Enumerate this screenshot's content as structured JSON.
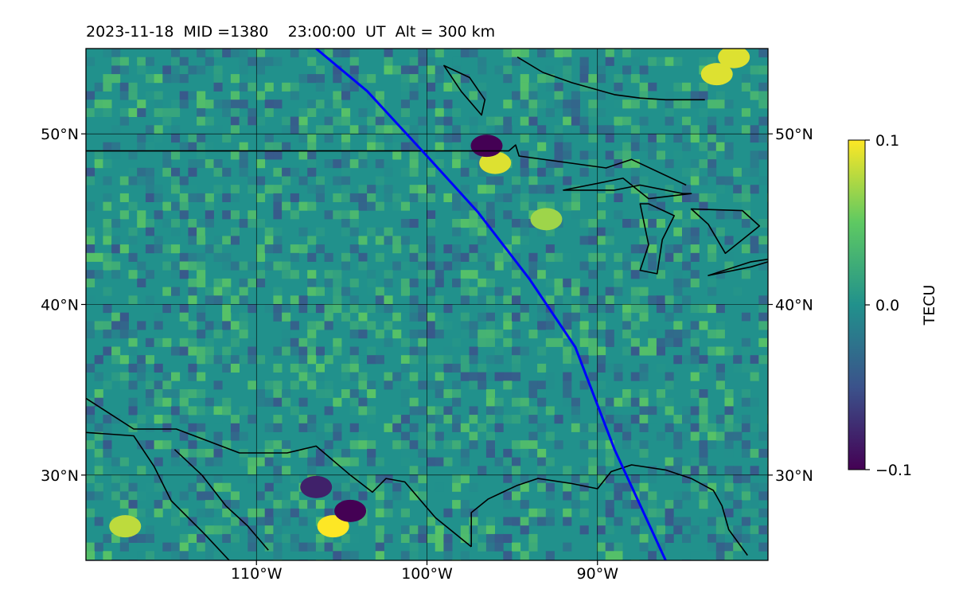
{
  "title": "2023-11-18  MID =1380    23:00:00  UT  Alt = 300 km",
  "map": {
    "lon_range": [
      -120,
      -80
    ],
    "lat_range": [
      25,
      55
    ],
    "lon_ticks": [
      {
        "value": -110,
        "label": "110°W"
      },
      {
        "value": -100,
        "label": "100°W"
      },
      {
        "value": -90,
        "label": "90°W"
      }
    ],
    "lat_ticks": [
      {
        "value": 50,
        "label": "50°N"
      },
      {
        "value": 40,
        "label": "40°N"
      },
      {
        "value": 30,
        "label": "30°N"
      }
    ],
    "grid": true,
    "colormap": "viridis",
    "colormap_stops": [
      "#440154",
      "#3b528b",
      "#21918c",
      "#5ec962",
      "#fde725"
    ],
    "boundary_color": "#000000",
    "track_color": "#0000ff",
    "background_value": 0.0,
    "anomalies": [
      {
        "lon": -105.5,
        "lat": 27,
        "value": 0.1
      },
      {
        "lon": -104.5,
        "lat": 27.9,
        "value": -0.1
      },
      {
        "lon": -96,
        "lat": 48.3,
        "value": 0.09
      },
      {
        "lon": -96.5,
        "lat": 49.3,
        "value": -0.1
      },
      {
        "lon": -83,
        "lat": 53.5,
        "value": 0.09
      },
      {
        "lon": -82,
        "lat": 54.5,
        "value": 0.09
      },
      {
        "lon": -93,
        "lat": 45,
        "value": 0.07
      },
      {
        "lon": -117.7,
        "lat": 27,
        "value": 0.08
      },
      {
        "lon": -106.5,
        "lat": 29.3,
        "value": -0.08
      }
    ],
    "satellite_track": [
      [
        -106.5,
        55
      ],
      [
        -103.5,
        52.5
      ],
      [
        -100,
        48.7
      ],
      [
        -97,
        45.4
      ],
      [
        -94,
        41.5
      ],
      [
        -91.3,
        37.5
      ],
      [
        -89,
        31.5
      ],
      [
        -86,
        25
      ]
    ],
    "boundaries": {
      "us_canada_border": [
        [
          -120,
          49
        ],
        [
          -95.2,
          49
        ],
        [
          -94.8,
          49.35
        ],
        [
          -94.6,
          48.7
        ],
        [
          -89.5,
          48
        ],
        [
          -88,
          48.5
        ],
        [
          -84.8,
          47
        ]
      ],
      "mexico_border": [
        [
          -120,
          34.5
        ],
        [
          -117.2,
          32.7
        ],
        [
          -114.7,
          32.7
        ],
        [
          -111,
          31.3
        ],
        [
          -108.2,
          31.3
        ],
        [
          -106.5,
          31.7
        ],
        [
          -104.5,
          30
        ],
        [
          -103.2,
          29
        ],
        [
          -102.4,
          29.8
        ],
        [
          -101.3,
          29.6
        ],
        [
          -99.5,
          27.5
        ],
        [
          -97.4,
          25.8
        ]
      ],
      "gulf_coast": [
        [
          -97.4,
          25.8
        ],
        [
          -97.4,
          27.8
        ],
        [
          -96.4,
          28.6
        ],
        [
          -94.7,
          29.4
        ],
        [
          -93.5,
          29.8
        ],
        [
          -91.5,
          29.5
        ],
        [
          -90,
          29.2
        ],
        [
          -89.2,
          30.2
        ],
        [
          -88,
          30.6
        ],
        [
          -86,
          30.3
        ],
        [
          -84.5,
          29.8
        ],
        [
          -83.2,
          29.1
        ],
        [
          -82.7,
          28.2
        ],
        [
          -82.3,
          26.8
        ],
        [
          -81.2,
          25.3
        ]
      ],
      "mexico_coast": [
        [
          -114.8,
          31.5
        ],
        [
          -113.2,
          30
        ],
        [
          -111.8,
          28.2
        ],
        [
          -110.5,
          27
        ],
        [
          -109.3,
          25.6
        ]
      ],
      "baja": [
        [
          -120,
          32.5
        ],
        [
          -117.2,
          32.3
        ],
        [
          -116,
          30.5
        ],
        [
          -115,
          28.5
        ],
        [
          -113,
          26.5
        ],
        [
          -111.6,
          25
        ]
      ],
      "great_lakes": [
        [
          [
            -92,
            46.7
          ],
          [
            -89,
            46.7
          ],
          [
            -87.5,
            47
          ],
          [
            -85,
            46.5
          ],
          [
            -84.5,
            46.5
          ],
          [
            -87,
            46.2
          ],
          [
            -88.5,
            47.4
          ],
          [
            -92,
            46.7
          ]
        ],
        [
          [
            -87.5,
            45.9
          ],
          [
            -87,
            43.5
          ],
          [
            -87.5,
            42
          ],
          [
            -86.5,
            41.8
          ],
          [
            -86.2,
            43.8
          ],
          [
            -85.5,
            45.2
          ],
          [
            -87,
            45.9
          ]
        ],
        [
          [
            -84.5,
            45.6
          ],
          [
            -83.5,
            44.7
          ],
          [
            -82.5,
            43
          ],
          [
            -80.5,
            44.6
          ],
          [
            -81.5,
            45.5
          ],
          [
            -84.5,
            45.6
          ]
        ],
        [
          [
            -83.5,
            41.7
          ],
          [
            -81,
            42.5
          ],
          [
            -79,
            42.8
          ],
          [
            -81,
            42.2
          ],
          [
            -83.5,
            41.7
          ]
        ]
      ],
      "hudson_bay": [
        [
          -94.7,
          54.5
        ],
        [
          -93.2,
          53.6
        ],
        [
          -91.5,
          53
        ],
        [
          -89,
          52.3
        ],
        [
          -87.5,
          52.1
        ],
        [
          -86,
          52
        ],
        [
          -83.7,
          52
        ]
      ],
      "lake_winnipeg": [
        [
          -99,
          54
        ],
        [
          -97.5,
          53.3
        ],
        [
          -96.6,
          52
        ],
        [
          -96.8,
          51.1
        ],
        [
          -98,
          52.5
        ],
        [
          -99,
          54
        ]
      ]
    }
  },
  "colorbar": {
    "label": "TECU",
    "min": -0.1,
    "max": 0.1,
    "ticks": [
      {
        "value": 0.1,
        "label": "0.1"
      },
      {
        "value": 0.0,
        "label": "0.0"
      },
      {
        "value": -0.1,
        "label": "−0.1"
      }
    ]
  }
}
